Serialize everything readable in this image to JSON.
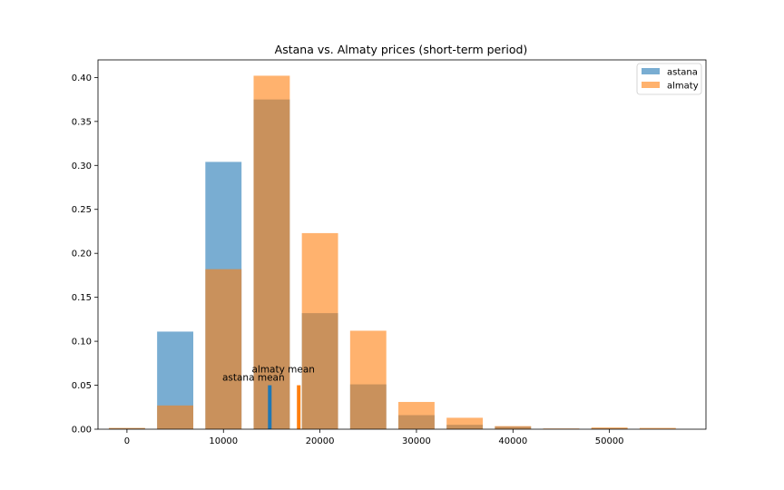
{
  "chart_data": {
    "type": "bar",
    "title": "Astana vs. Almaty prices (short-term period)",
    "xlabel": "",
    "ylabel": "",
    "xlim": [
      -3000,
      60000
    ],
    "ylim": [
      0,
      0.42
    ],
    "xticks": [
      0,
      10000,
      20000,
      30000,
      40000,
      50000
    ],
    "yticks": [
      "0.00",
      "0.05",
      "0.10",
      "0.15",
      "0.20",
      "0.25",
      "0.30",
      "0.35",
      "0.40"
    ],
    "bins": [
      0,
      5000,
      10000,
      15000,
      20000,
      25000,
      30000,
      35000,
      40000,
      45000,
      50000,
      55000
    ],
    "bar_width": 3750,
    "series": [
      {
        "name": "astana",
        "color": "#1f77b4",
        "values": [
          0.001,
          0.111,
          0.304,
          0.375,
          0.132,
          0.051,
          0.016,
          0.005,
          0.003,
          0.0005,
          0.001,
          0.0
        ]
      },
      {
        "name": "almaty",
        "color": "#ff7f0e",
        "values": [
          0.0015,
          0.027,
          0.182,
          0.402,
          0.223,
          0.112,
          0.031,
          0.013,
          0.0035,
          0.0008,
          0.002,
          0.0015
        ]
      }
    ],
    "mean_markers": [
      {
        "label": "astana mean",
        "x": 14800,
        "height": 0.05,
        "color": "#1f77b4"
      },
      {
        "label": "almaty mean",
        "x": 17800,
        "height": 0.05,
        "color": "#ff7f0e"
      }
    ],
    "legend": "upper right",
    "grid": false
  }
}
